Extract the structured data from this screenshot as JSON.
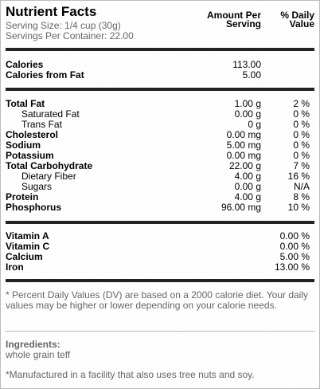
{
  "header": {
    "title": "Nutrient Facts",
    "serving_size": "Serving Size: 1/4 cup (30g)",
    "servings_per_container": "Servings Per Container: 22.00",
    "amount_per_serving": "Amount Per Serving",
    "daily_value": "% Daily Value"
  },
  "calories": [
    {
      "name": "Calories",
      "amount": "113.00",
      "pct": ""
    },
    {
      "name": "Calories from Fat",
      "amount": "5.00",
      "pct": ""
    }
  ],
  "nutrients": [
    {
      "name": "Total Fat",
      "amount": "1.00 g",
      "pct": "2 %",
      "bold": true,
      "indent": false
    },
    {
      "name": "Saturated Fat",
      "amount": "0.00 g",
      "pct": "0 %",
      "bold": false,
      "indent": true
    },
    {
      "name": "Trans Fat",
      "amount": "0 g",
      "pct": "0 %",
      "bold": false,
      "indent": true
    },
    {
      "name": "Cholesterol",
      "amount": "0.00 mg",
      "pct": "0 %",
      "bold": true,
      "indent": false
    },
    {
      "name": "Sodium",
      "amount": "5.00 mg",
      "pct": "0 %",
      "bold": true,
      "indent": false
    },
    {
      "name": "Potassium",
      "amount": "0.00 mg",
      "pct": "0 %",
      "bold": true,
      "indent": false
    },
    {
      "name": "Total Carbohydrate",
      "amount": "22.00 g",
      "pct": "7 %",
      "bold": true,
      "indent": false
    },
    {
      "name": "Dietary Fiber",
      "amount": "4.00 g",
      "pct": "16 %",
      "bold": false,
      "indent": true
    },
    {
      "name": "Sugars",
      "amount": "0.00 g",
      "pct": "N/A",
      "bold": false,
      "indent": true
    },
    {
      "name": "Protein",
      "amount": "4.00 g",
      "pct": "8 %",
      "bold": true,
      "indent": false
    },
    {
      "name": "Phosphorus",
      "amount": "96.00 mg",
      "pct": "10 %",
      "bold": true,
      "indent": false
    }
  ],
  "vitamins": [
    {
      "name": "Vitamin A",
      "pct": "0.00 %"
    },
    {
      "name": "Vitamin C",
      "pct": "0.00 %"
    },
    {
      "name": "Calcium",
      "pct": "5.00 %"
    },
    {
      "name": "Iron",
      "pct": "13.00 %"
    }
  ],
  "footnote": "* Percent Daily Values (DV) are based on a 2000 calorie diet. Your daily values may be higher or lower depending on your calorie needs.",
  "ingredients": {
    "title": "Ingredients:",
    "text": "whole grain teff"
  },
  "manufactured": "*Manufactured in a facility that also uses tree nuts and soy."
}
